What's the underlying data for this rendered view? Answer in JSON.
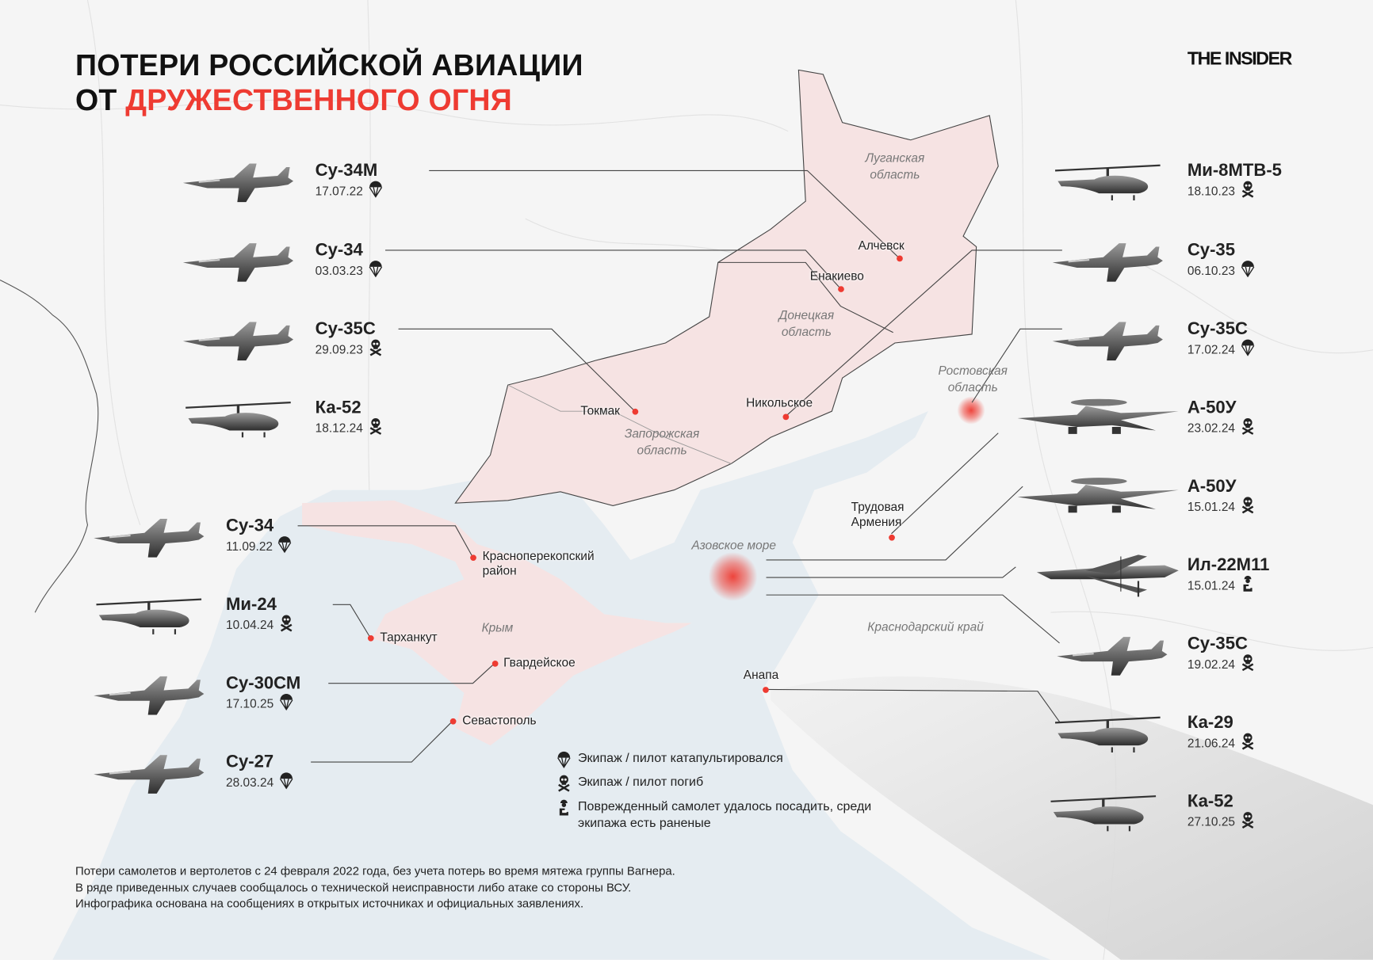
{
  "title": {
    "line1": "ПОТЕРИ РОССИЙСКОЙ АВИАЦИИ",
    "line2_prefix": "ОТ",
    "line2_highlight": "ДРУЖЕСТВЕННОГО ОГНЯ"
  },
  "logo": "THE INSIDER",
  "colors": {
    "accent": "#ee3b32",
    "occupied": "#f6e3e3",
    "sea": "#e5ecf1",
    "land": "#f5f5f5"
  },
  "aircraft": [
    {
      "name": "Су-34М",
      "date": "17.07.22",
      "outcome": "parachute-icon",
      "kind": "jet"
    },
    {
      "name": "Су-34",
      "date": "03.03.23",
      "outcome": "parachute-icon",
      "kind": "jet"
    },
    {
      "name": "Су-35С",
      "date": "29.09.23",
      "outcome": "skull-icon",
      "kind": "jet"
    },
    {
      "name": "Ка-52",
      "date": "18.12.24",
      "outcome": "skull-icon",
      "kind": "heli"
    },
    {
      "name": "Су-34",
      "date": "11.09.22",
      "outcome": "parachute-icon",
      "kind": "jet"
    },
    {
      "name": "Ми-24",
      "date": "10.04.24",
      "outcome": "skull-icon",
      "kind": "heli"
    },
    {
      "name": "Су-30СМ",
      "date": "17.10.25",
      "outcome": "parachute-icon",
      "kind": "jet"
    },
    {
      "name": "Су-27",
      "date": "28.03.24",
      "outcome": "parachute-icon",
      "kind": "jet"
    },
    {
      "name": "Ми-8МТВ-5",
      "date": "18.10.23",
      "outcome": "skull-icon",
      "kind": "heli"
    },
    {
      "name": "Су-35",
      "date": "06.10.23",
      "outcome": "parachute-icon",
      "kind": "jet"
    },
    {
      "name": "Су-35С",
      "date": "17.02.24",
      "outcome": "parachute-icon",
      "kind": "jet"
    },
    {
      "name": "А-50У",
      "date": "23.02.24",
      "outcome": "skull-icon",
      "kind": "awacs"
    },
    {
      "name": "А-50У",
      "date": "15.01.24",
      "outcome": "skull-icon",
      "kind": "awacs"
    },
    {
      "name": "Ил-22М11",
      "date": "15.01.24",
      "outcome": "injured-icon",
      "kind": "turboprop"
    },
    {
      "name": "Су-35С",
      "date": "19.02.24",
      "outcome": "skull-icon",
      "kind": "jet"
    },
    {
      "name": "Ка-29",
      "date": "21.06.24",
      "outcome": "skull-icon",
      "kind": "heli"
    },
    {
      "name": "Ка-52",
      "date": "27.10.25",
      "outcome": "skull-icon",
      "kind": "heli"
    }
  ],
  "cities": [
    {
      "name": "Алчевск"
    },
    {
      "name": "Енакиево"
    },
    {
      "name": "Токмак"
    },
    {
      "name": "Никольское"
    },
    {
      "name": "Красноперекопский район"
    },
    {
      "name": "Тарханкут"
    },
    {
      "name": "Гвардейское"
    },
    {
      "name": "Севастополь"
    },
    {
      "name": "Трудовая Армения"
    },
    {
      "name": "Анапа"
    }
  ],
  "regions": [
    {
      "name": "Луганская область"
    },
    {
      "name": "Донецкая область"
    },
    {
      "name": "Запорожская область"
    },
    {
      "name": "Ростовская область"
    },
    {
      "name": "Азовское море"
    },
    {
      "name": "Крым"
    },
    {
      "name": "Краснодарский край"
    }
  ],
  "legend": [
    {
      "icon": "parachute-icon",
      "text": "Экипаж / пилот катапультировался"
    },
    {
      "icon": "skull-icon",
      "text": "Экипаж / пилот погиб"
    },
    {
      "icon": "injured-icon",
      "text": "Поврежденный самолет удалось посадить, среди экипажа есть раненые"
    }
  ],
  "footnote": [
    "Потери самолетов и вертолетов с 24 февраля 2022 года, без учета потерь во время мятежа группы Вагнера.",
    "В ряде приведенных случаев сообщалось о технической неисправности либо атаке со стороны ВСУ.",
    "Инфографика основана на сообщениях в открытых источниках и официальных заявлениях."
  ]
}
